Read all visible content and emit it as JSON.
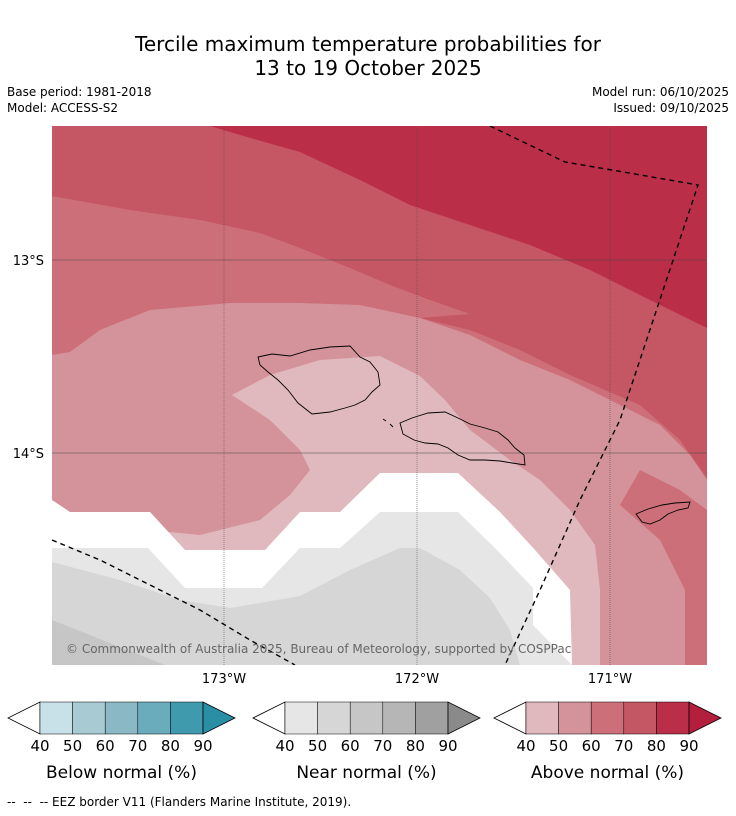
{
  "title": {
    "line1": "Tercile maximum temperature probabilities for",
    "line2": "13 to 19 October 2025"
  },
  "meta": {
    "base_period": "Base period: 1981-2018",
    "model": "Model: ACCESS-S2",
    "model_run": "Model run: 06/10/2025",
    "issued": "Issued: 09/10/2025"
  },
  "map": {
    "copyright": "© Commonwealth of Australia 2025, Bureau of Meteorology, supported by COSPPac",
    "lat_labels": [
      "13°S",
      "14°S"
    ],
    "lon_labels": [
      "173°W",
      "172°W",
      "171°W"
    ]
  },
  "colorbars": [
    {
      "label": "Below normal (%)",
      "ticks": [
        "40",
        "50",
        "60",
        "70",
        "80",
        "90"
      ],
      "colors": [
        "#c8e1e8",
        "#a8cad2",
        "#8ab8c4",
        "#6aacbb",
        "#3f9aae",
        "#2a8fa5"
      ]
    },
    {
      "label": "Near normal (%)",
      "ticks": [
        "40",
        "50",
        "60",
        "70",
        "80",
        "90"
      ],
      "colors": [
        "#e6e6e6",
        "#d6d6d6",
        "#c6c6c6",
        "#b6b6b6",
        "#a0a0a0",
        "#8a8a8a"
      ]
    },
    {
      "label": "Above normal (%)",
      "ticks": [
        "40",
        "50",
        "60",
        "70",
        "80",
        "90"
      ],
      "colors": [
        "#e0b9be",
        "#d4939a",
        "#cd6f78",
        "#c55664",
        "#bb2e48",
        "#b51f3e"
      ]
    }
  ],
  "footer": "--  --  -- EEZ border V11 (Flanders Marine Institute, 2019)."
}
